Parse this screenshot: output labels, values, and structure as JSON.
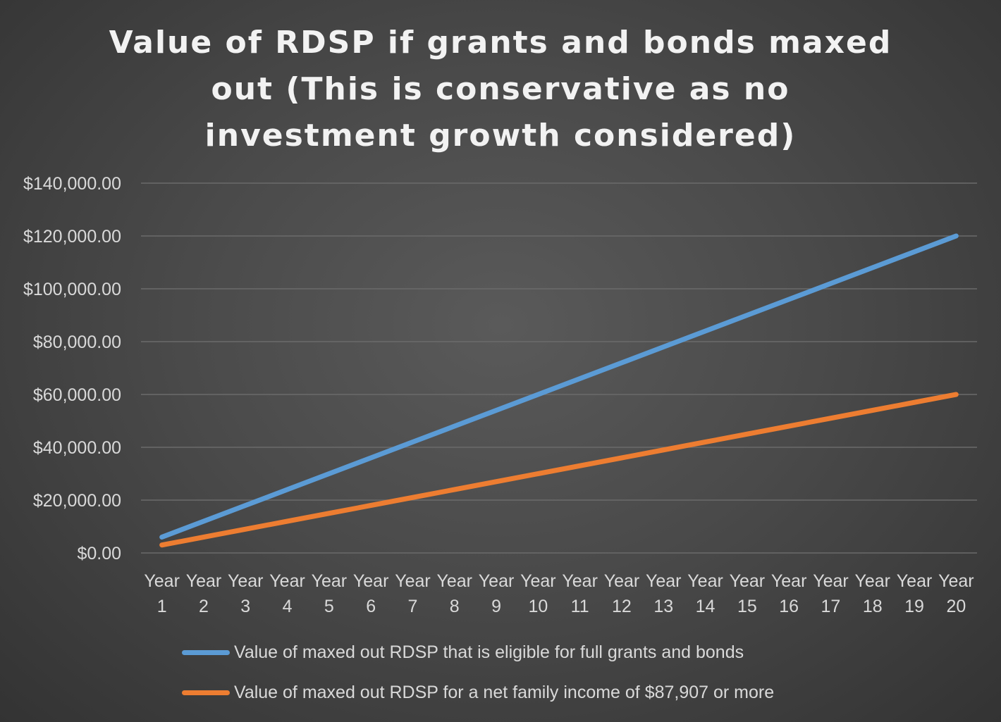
{
  "chart_data": {
    "type": "line",
    "title": "Value of RDSP if grants and bonds maxed out (This is conservative as no investment growth considered)",
    "categories": [
      [
        "Year",
        "1"
      ],
      [
        "Year",
        "2"
      ],
      [
        "Year",
        "3"
      ],
      [
        "Year",
        "4"
      ],
      [
        "Year",
        "5"
      ],
      [
        "Year",
        "6"
      ],
      [
        "Year",
        "7"
      ],
      [
        "Year",
        "8"
      ],
      [
        "Year",
        "9"
      ],
      [
        "Year",
        "10"
      ],
      [
        "Year",
        "11"
      ],
      [
        "Year",
        "12"
      ],
      [
        "Year",
        "13"
      ],
      [
        "Year",
        "14"
      ],
      [
        "Year",
        "15"
      ],
      [
        "Year",
        "16"
      ],
      [
        "Year",
        "17"
      ],
      [
        "Year",
        "18"
      ],
      [
        "Year",
        "19"
      ],
      [
        "Year",
        "20"
      ]
    ],
    "ylim": [
      0,
      140000
    ],
    "yticks": [
      {
        "value": 0,
        "label": "$0.00"
      },
      {
        "value": 20000,
        "label": "$20,000.00"
      },
      {
        "value": 40000,
        "label": "$40,000.00"
      },
      {
        "value": 60000,
        "label": "$60,000.00"
      },
      {
        "value": 80000,
        "label": "$80,000.00"
      },
      {
        "value": 100000,
        "label": "$100,000.00"
      },
      {
        "value": 120000,
        "label": "$120,000.00"
      },
      {
        "value": 140000,
        "label": "$140,000.00"
      }
    ],
    "grid": true,
    "legend_position": "bottom",
    "series": [
      {
        "name": "Value of maxed out RDSP that is eligible for full grants and bonds",
        "color": "#5b9bd5",
        "values": [
          6000,
          12000,
          18000,
          24000,
          30000,
          36000,
          42000,
          48000,
          54000,
          60000,
          66000,
          72000,
          78000,
          84000,
          90000,
          96000,
          102000,
          108000,
          114000,
          120000
        ]
      },
      {
        "name": "Value of maxed out RDSP for a net family income of $87,907 or more",
        "color": "#ed7d31",
        "values": [
          3000,
          6000,
          9000,
          12000,
          15000,
          18000,
          21000,
          24000,
          27000,
          30000,
          33000,
          36000,
          39000,
          42000,
          45000,
          48000,
          51000,
          54000,
          57000,
          60000
        ]
      }
    ]
  }
}
